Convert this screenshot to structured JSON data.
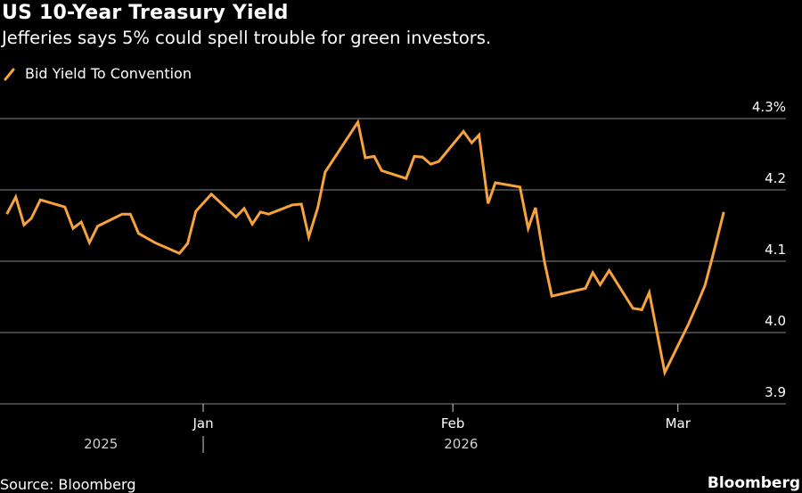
{
  "header": {
    "title": "US 10-Year Treasury Yield",
    "subtitle": "Jefferies says 5% could spell trouble for green investors."
  },
  "footer": {
    "source": "Source: Bloomberg",
    "brand": "Bloomberg"
  },
  "colors": {
    "background": "#000000",
    "line": "#f6a23d",
    "grid": "#5a5a5a",
    "text": "#ffffff"
  },
  "chart_data": {
    "type": "line",
    "title": "US 10-Year Treasury Yield",
    "subtitle": "Jefferies says 5% could spell trouble for green investors.",
    "xlabel": "",
    "ylabel": "",
    "ylim": [
      3.9,
      4.3
    ],
    "yticks": [
      {
        "value": 4.3,
        "label": "4.3%"
      },
      {
        "value": 4.2,
        "label": "4.2"
      },
      {
        "value": 4.1,
        "label": "4.1"
      },
      {
        "value": 4.0,
        "label": "4.0"
      },
      {
        "value": 3.9,
        "label": "3.9"
      }
    ],
    "xticks": [
      {
        "index": 24.5,
        "label": "Jan"
      },
      {
        "index": 55,
        "label": "Feb"
      },
      {
        "index": 82.5,
        "label": "Mar"
      }
    ],
    "year_labels": [
      {
        "index": 12,
        "label": "2025"
      },
      {
        "index": 56,
        "label": "2026"
      }
    ],
    "year_divider_index": 24.5,
    "x_range": [
      0,
      92
    ],
    "grid": true,
    "legend": {
      "position": "top-left",
      "entries": [
        "Bid Yield To Convention"
      ]
    },
    "series": [
      {
        "name": "Bid Yield To Convention",
        "points": [
          [
            0.5,
            4.166
          ],
          [
            1.6,
            4.19
          ],
          [
            2.6,
            4.151
          ],
          [
            3.5,
            4.16
          ],
          [
            4.6,
            4.186
          ],
          [
            7.6,
            4.176
          ],
          [
            8.6,
            4.146
          ],
          [
            9.6,
            4.155
          ],
          [
            10.6,
            4.126
          ],
          [
            11.6,
            4.149
          ],
          [
            14.6,
            4.166
          ],
          [
            15.6,
            4.166
          ],
          [
            16.6,
            4.139
          ],
          [
            18.6,
            4.126
          ],
          [
            21.6,
            4.111
          ],
          [
            22.6,
            4.125
          ],
          [
            23.6,
            4.17
          ],
          [
            25.5,
            4.194
          ],
          [
            28.5,
            4.162
          ],
          [
            29.5,
            4.174
          ],
          [
            30.5,
            4.152
          ],
          [
            31.5,
            4.169
          ],
          [
            32.5,
            4.166
          ],
          [
            35.4,
            4.179
          ],
          [
            36.5,
            4.18
          ],
          [
            37.4,
            4.134
          ],
          [
            38.5,
            4.175
          ],
          [
            39.4,
            4.225
          ],
          [
            43.4,
            4.295
          ],
          [
            44.3,
            4.245
          ],
          [
            45.4,
            4.247
          ],
          [
            46.3,
            4.227
          ],
          [
            49.3,
            4.216
          ],
          [
            50.3,
            4.247
          ],
          [
            51.3,
            4.246
          ],
          [
            52.3,
            4.236
          ],
          [
            53.3,
            4.24
          ],
          [
            56.3,
            4.282
          ],
          [
            57.3,
            4.266
          ],
          [
            58.2,
            4.277
          ],
          [
            59.3,
            4.181
          ],
          [
            60.2,
            4.21
          ],
          [
            63.2,
            4.204
          ],
          [
            64.2,
            4.146
          ],
          [
            65.1,
            4.175
          ],
          [
            66.2,
            4.099
          ],
          [
            67.1,
            4.051
          ],
          [
            68.2,
            4.054
          ],
          [
            71.2,
            4.062
          ],
          [
            72.1,
            4.084
          ],
          [
            73.0,
            4.067
          ],
          [
            74.1,
            4.087
          ],
          [
            77.0,
            4.034
          ],
          [
            78.1,
            4.032
          ],
          [
            79.0,
            4.056
          ],
          [
            80.9,
            3.944
          ],
          [
            83.8,
            4.012
          ],
          [
            84.9,
            4.041
          ],
          [
            85.8,
            4.066
          ],
          [
            86.8,
            4.109
          ],
          [
            88.1,
            4.169
          ]
        ]
      }
    ]
  }
}
